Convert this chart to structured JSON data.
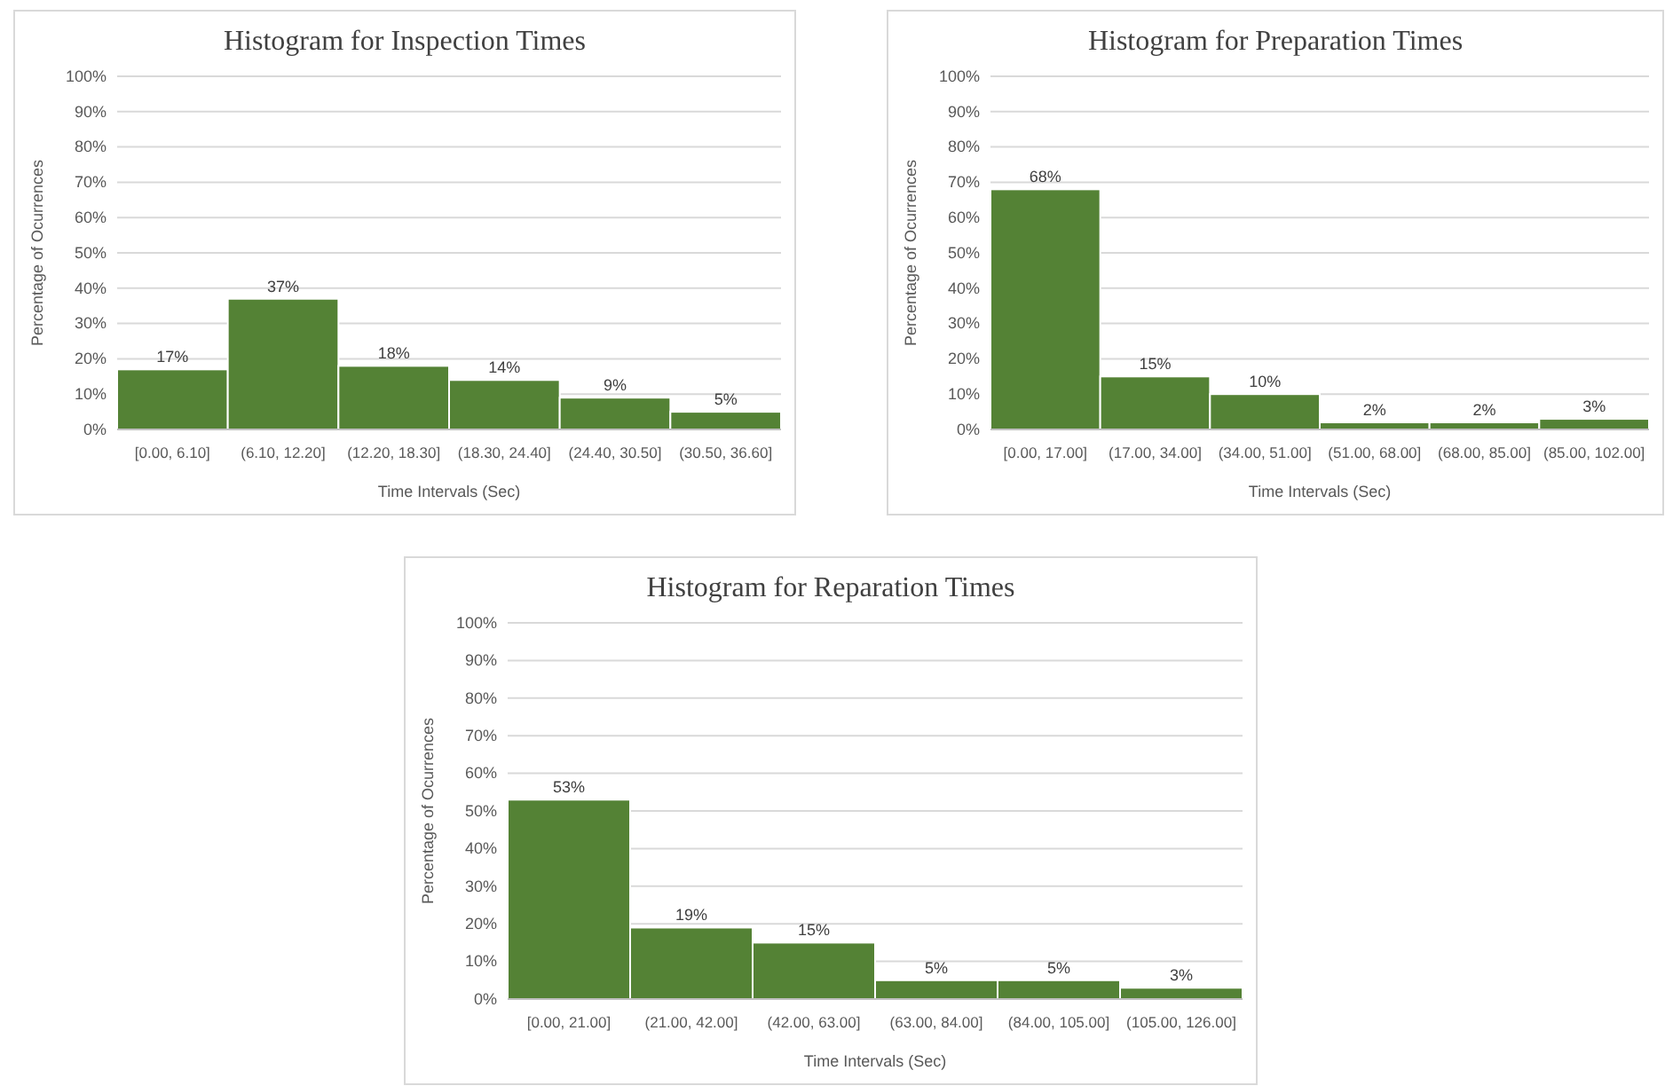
{
  "chart_data": [
    {
      "type": "bar",
      "title": "Histogram for Inspection Times",
      "xlabel": "Time Intervals (Sec)",
      "ylabel": "Percentage of Ocurrences",
      "categories": [
        "[0.00, 6.10]",
        "(6.10, 12.20]",
        "(12.20, 18.30]",
        "(18.30, 24.40]",
        "(24.40, 30.50]",
        "(30.50, 36.60]"
      ],
      "values": [
        17,
        37,
        18,
        14,
        9,
        5
      ],
      "value_labels": [
        "17%",
        "37%",
        "18%",
        "14%",
        "9%",
        "5%"
      ],
      "color": "#548235",
      "ylim": [
        0,
        100
      ],
      "yticks": [
        {
          "value": 0,
          "label": "0%"
        },
        {
          "value": 10,
          "label": "10%"
        },
        {
          "value": 20,
          "label": "20%"
        },
        {
          "value": 30,
          "label": "30%"
        },
        {
          "value": 40,
          "label": "40%"
        },
        {
          "value": 50,
          "label": "50%"
        },
        {
          "value": 60,
          "label": "60%"
        },
        {
          "value": 70,
          "label": "70%"
        },
        {
          "value": 80,
          "label": "80%"
        },
        {
          "value": 90,
          "label": "90%"
        },
        {
          "value": 100,
          "label": "100%"
        }
      ],
      "grid": "y"
    },
    {
      "type": "bar",
      "title": "Histogram for Preparation Times",
      "xlabel": "Time Intervals (Sec)",
      "ylabel": "Percentage of Ocurrences",
      "categories": [
        "[0.00, 17.00]",
        "(17.00, 34.00]",
        "(34.00, 51.00]",
        "(51.00, 68.00]",
        "(68.00, 85.00]",
        "(85.00, 102.00]"
      ],
      "values": [
        68,
        15,
        10,
        2,
        2,
        3
      ],
      "value_labels": [
        "68%",
        "15%",
        "10%",
        "2%",
        "2%",
        "3%"
      ],
      "color": "#548235",
      "ylim": [
        0,
        100
      ],
      "yticks": [
        {
          "value": 0,
          "label": "0%"
        },
        {
          "value": 10,
          "label": "10%"
        },
        {
          "value": 20,
          "label": "20%"
        },
        {
          "value": 30,
          "label": "30%"
        },
        {
          "value": 40,
          "label": "40%"
        },
        {
          "value": 50,
          "label": "50%"
        },
        {
          "value": 60,
          "label": "60%"
        },
        {
          "value": 70,
          "label": "70%"
        },
        {
          "value": 80,
          "label": "80%"
        },
        {
          "value": 90,
          "label": "90%"
        },
        {
          "value": 100,
          "label": "100%"
        }
      ],
      "grid": "y"
    },
    {
      "type": "bar",
      "title": "Histogram for Reparation Times",
      "xlabel": "Time Intervals (Sec)",
      "ylabel": "Percentage of Ocurrences",
      "categories": [
        "[0.00, 21.00]",
        "(21.00, 42.00]",
        "(42.00, 63.00]",
        "(63.00, 84.00]",
        "(84.00, 105.00]",
        "(105.00, 126.00]"
      ],
      "values": [
        53,
        19,
        15,
        5,
        5,
        3
      ],
      "value_labels": [
        "53%",
        "19%",
        "15%",
        "5%",
        "5%",
        "3%"
      ],
      "color": "#548235",
      "ylim": [
        0,
        100
      ],
      "yticks": [
        {
          "value": 0,
          "label": "0%"
        },
        {
          "value": 10,
          "label": "10%"
        },
        {
          "value": 20,
          "label": "20%"
        },
        {
          "value": 30,
          "label": "30%"
        },
        {
          "value": 40,
          "label": "40%"
        },
        {
          "value": 50,
          "label": "50%"
        },
        {
          "value": 60,
          "label": "60%"
        },
        {
          "value": 70,
          "label": "70%"
        },
        {
          "value": 80,
          "label": "80%"
        },
        {
          "value": 90,
          "label": "90%"
        },
        {
          "value": 100,
          "label": "100%"
        }
      ],
      "grid": "y"
    }
  ]
}
